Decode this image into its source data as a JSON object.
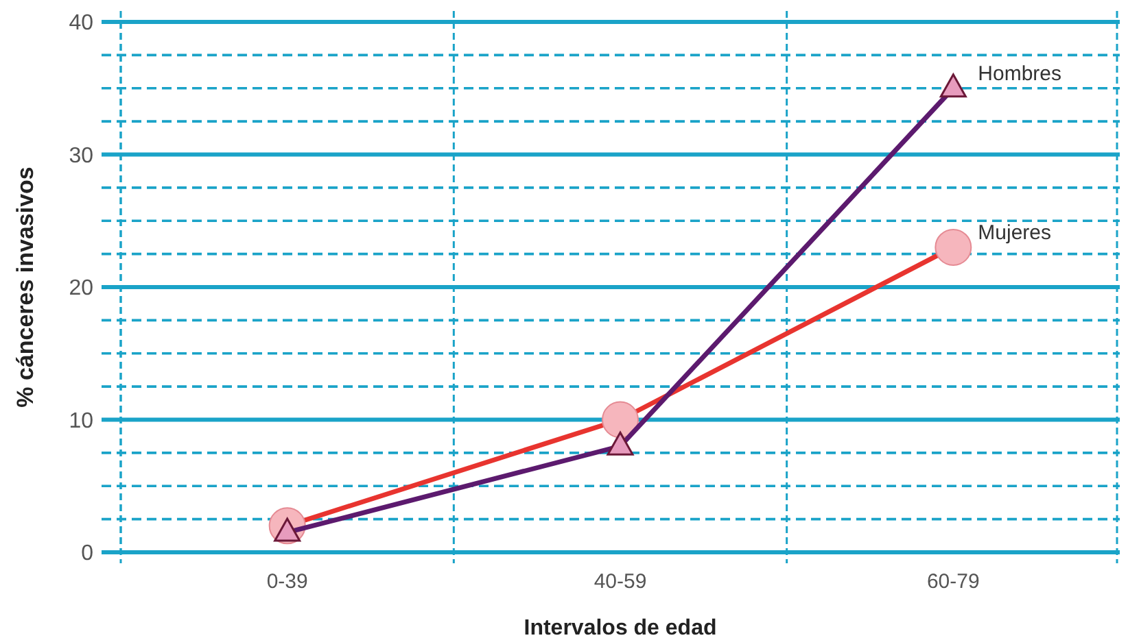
{
  "chart_data": {
    "type": "line",
    "xlabel": "Intervalos de edad",
    "ylabel": "% cánceres invasivos",
    "categories": [
      "0-39",
      "40-59",
      "60-79"
    ],
    "series": [
      {
        "name": "Hombres",
        "color": "#5c1a6e",
        "marker": "triangle",
        "values": [
          1.5,
          8,
          35
        ]
      },
      {
        "name": "Mujeres",
        "color": "#e8342f",
        "marker": "circle",
        "values": [
          2,
          10,
          23
        ]
      }
    ],
    "ylim": [
      0,
      40
    ],
    "yticks": [
      0,
      {
        "value": 2.5,
        "label": null
      },
      {
        "value": 5,
        "label": null
      },
      {
        "value": 7.5,
        "label": null
      },
      10,
      {
        "value": 12.5,
        "label": null
      },
      {
        "value": 15,
        "label": null
      },
      {
        "value": 17.5,
        "label": null
      },
      20,
      {
        "value": 22.5,
        "label": null
      },
      {
        "value": 25,
        "label": null
      },
      {
        "value": 27.5,
        "label": null
      },
      30,
      {
        "value": 32.5,
        "label": null
      },
      {
        "value": 35,
        "label": null
      },
      {
        "value": 37.5,
        "label": null
      },
      40
    ],
    "grid": true,
    "line_style": "solid"
  }
}
